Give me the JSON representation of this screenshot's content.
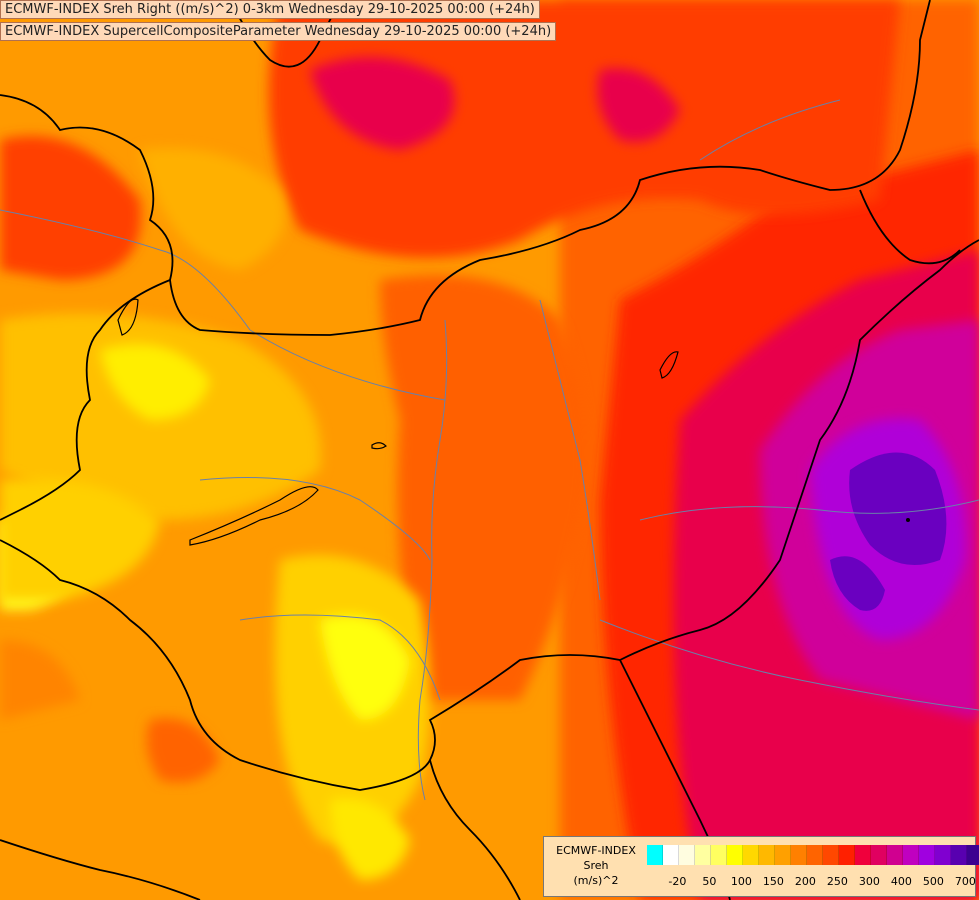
{
  "titles": {
    "line1": "ECMWF-INDEX Sreh Right ((m/s)^2) 0-3km Wednesday 29-10-2025 00:00 (+24h)",
    "line2": "ECMWF-INDEX SupercellCompositeParameter Wednesday 29-10-2025 00:00 (+24h)"
  },
  "legend": {
    "source": "ECMWF-INDEX",
    "parameter": "Sreh",
    "unit": "(m/s)^2",
    "colors": [
      "#00ffff",
      "#ffffff",
      "#fffde0",
      "#ffffa0",
      "#ffff60",
      "#ffff00",
      "#ffd800",
      "#ffb800",
      "#ffa000",
      "#ff8000",
      "#ff6400",
      "#ff4800",
      "#ff2000",
      "#f0003c",
      "#e00060",
      "#d00090",
      "#c000c0",
      "#a000e0",
      "#8000d0",
      "#5800b0",
      "#3c0090",
      "#180070"
    ],
    "ticks": [
      {
        "label": "-20",
        "index": 1
      },
      {
        "label": "50",
        "index": 3
      },
      {
        "label": "100",
        "index": 5
      },
      {
        "label": "150",
        "index": 7
      },
      {
        "label": "200",
        "index": 9
      },
      {
        "label": "250",
        "index": 11
      },
      {
        "label": "300",
        "index": 13
      },
      {
        "label": "400",
        "index": 15
      },
      {
        "label": "500",
        "index": 17
      },
      {
        "label": "700",
        "index": 19
      }
    ]
  }
}
